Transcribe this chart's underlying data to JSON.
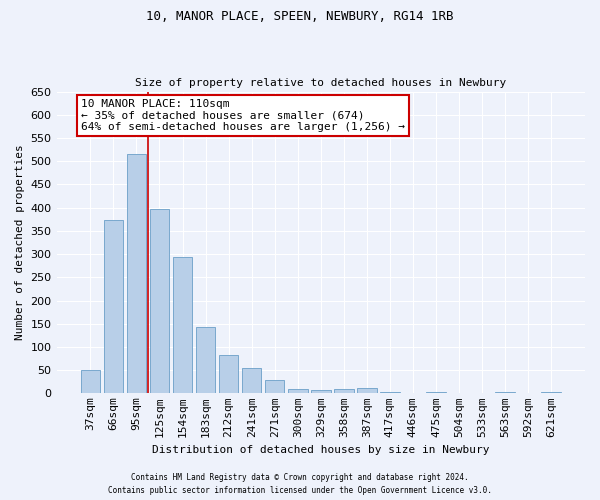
{
  "title1": "10, MANOR PLACE, SPEEN, NEWBURY, RG14 1RB",
  "title2": "Size of property relative to detached houses in Newbury",
  "xlabel": "Distribution of detached houses by size in Newbury",
  "ylabel": "Number of detached properties",
  "categories": [
    "37sqm",
    "66sqm",
    "95sqm",
    "125sqm",
    "154sqm",
    "183sqm",
    "212sqm",
    "241sqm",
    "271sqm",
    "300sqm",
    "329sqm",
    "358sqm",
    "387sqm",
    "417sqm",
    "446sqm",
    "475sqm",
    "504sqm",
    "533sqm",
    "563sqm",
    "592sqm",
    "621sqm"
  ],
  "values": [
    50,
    373,
    515,
    398,
    293,
    142,
    82,
    55,
    28,
    10,
    7,
    10,
    12,
    4,
    0,
    4,
    0,
    0,
    4,
    0,
    4
  ],
  "bar_color": "#b8cfe8",
  "bar_edge_color": "#6a9fc8",
  "red_line_x": 2.5,
  "annotation_line0": "10 MANOR PLACE: 110sqm",
  "annotation_line1": "← 35% of detached houses are smaller (674)",
  "annotation_line2": "64% of semi-detached houses are larger (1,256) →",
  "ylim": [
    0,
    650
  ],
  "yticks": [
    0,
    50,
    100,
    150,
    200,
    250,
    300,
    350,
    400,
    450,
    500,
    550,
    600,
    650
  ],
  "footer1": "Contains HM Land Registry data © Crown copyright and database right 2024.",
  "footer2": "Contains public sector information licensed under the Open Government Licence v3.0.",
  "background_color": "#eef2fb",
  "grid_color": "#ffffff",
  "annotation_box_color": "#ffffff",
  "annotation_box_edge": "#cc0000",
  "red_line_color": "#cc0000",
  "title_fontsize": 9,
  "subtitle_fontsize": 8,
  "ylabel_fontsize": 8,
  "xlabel_fontsize": 8,
  "tick_fontsize": 8,
  "annot_fontsize": 8
}
